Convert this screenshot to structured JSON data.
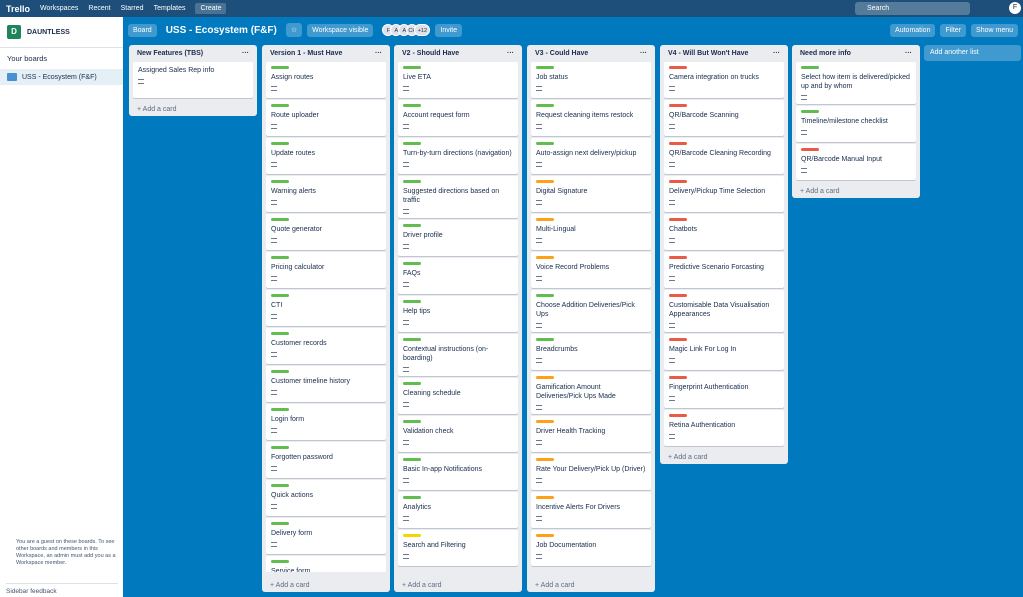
{
  "topbar": {
    "logo": "Trello",
    "nav": [
      "Workspaces",
      "Recent",
      "Starred",
      "Templates"
    ],
    "create": "Create",
    "search": "Search",
    "account": "F"
  },
  "board_header": {
    "view": "Board",
    "title": "USS - Ecosystem (F&F)",
    "visibility": "Workspace visible",
    "members": [
      "F",
      "A",
      "A",
      "CH"
    ],
    "more_members": "+12",
    "invite": "Invite",
    "automation": "Automation",
    "filter": "Filter",
    "menu": "Show menu"
  },
  "sidebar": {
    "workspace_initial": "D",
    "workspace": "DAUNTLESS",
    "section": "Your boards",
    "boards": [
      "USS - Ecosystem (F&F)"
    ],
    "notice": "You are a guest on these boards. To see other boards and members in this Workspace, an admin must add you as a Workspace member.",
    "feedback": "Sidebar feedback"
  },
  "lists": [
    {
      "title": "New Features (TBS)",
      "cards": [
        {
          "title": "Assigned Sales Rep info"
        }
      ],
      "add": "Add a card"
    },
    {
      "title": "Version 1 - Must Have",
      "cards": [
        {
          "title": "Assign routes",
          "label": "#61bd4f"
        },
        {
          "title": "Route uploader",
          "label": "#61bd4f"
        },
        {
          "title": "Update routes",
          "label": "#61bd4f"
        },
        {
          "title": "Warning alerts",
          "label": "#61bd4f"
        },
        {
          "title": "Quote generator",
          "label": "#61bd4f"
        },
        {
          "title": "Pricing calculator",
          "label": "#61bd4f"
        },
        {
          "title": "CTI",
          "label": "#61bd4f"
        },
        {
          "title": "Customer records",
          "label": "#61bd4f"
        },
        {
          "title": "Customer timeline history",
          "label": "#61bd4f"
        },
        {
          "title": "Login form",
          "label": "#61bd4f"
        },
        {
          "title": "Forgotten password",
          "label": "#61bd4f"
        },
        {
          "title": "Quick actions",
          "label": "#61bd4f"
        },
        {
          "title": "Delivery form",
          "label": "#61bd4f"
        },
        {
          "title": "Service form",
          "label": "#61bd4f"
        }
      ],
      "add": "Add a card"
    },
    {
      "title": "V2 - Should Have",
      "cards": [
        {
          "title": "Live ETA",
          "label": "#61bd4f"
        },
        {
          "title": "Account request form",
          "label": "#61bd4f"
        },
        {
          "title": "Turn-by-turn directions (navigation)",
          "label": "#61bd4f"
        },
        {
          "title": "Suggested directions based on traffic",
          "label": "#61bd4f"
        },
        {
          "title": "Driver profile",
          "label": "#61bd4f"
        },
        {
          "title": "FAQs",
          "label": "#61bd4f"
        },
        {
          "title": "Help tips",
          "label": "#61bd4f"
        },
        {
          "title": "Contextual instructions (on-boarding)",
          "label": "#61bd4f"
        },
        {
          "title": "Cleaning schedule",
          "label": "#61bd4f"
        },
        {
          "title": "Validation check",
          "label": "#61bd4f"
        },
        {
          "title": "Basic In-app Notifications",
          "label": "#61bd4f"
        },
        {
          "title": "Analytics",
          "label": "#61bd4f"
        },
        {
          "title": "Search and Filtering",
          "label": "#f2d600"
        }
      ],
      "add": "Add a card"
    },
    {
      "title": "V3 - Could Have",
      "cards": [
        {
          "title": "Job status",
          "label": "#61bd4f"
        },
        {
          "title": "Request cleaning items restock",
          "label": "#61bd4f"
        },
        {
          "title": "Auto-assign next delivery/pickup",
          "label": "#61bd4f"
        },
        {
          "title": "Digital Signature",
          "label": "#ff9f1a"
        },
        {
          "title": "Multi-Lingual",
          "label": "#ff9f1a"
        },
        {
          "title": "Voice Record Problems",
          "label": "#ff9f1a"
        },
        {
          "title": "Choose Addition Deliveries/Pick Ups",
          "label": "#61bd4f"
        },
        {
          "title": "Breadcrumbs",
          "label": "#61bd4f"
        },
        {
          "title": "Gamification Amount Deliveries/Pick Ups Made",
          "label": "#ff9f1a"
        },
        {
          "title": "Driver Health Tracking",
          "label": "#ff9f1a"
        },
        {
          "title": "Rate Your Delivery/Pick Up (Driver)",
          "label": "#ff9f1a"
        },
        {
          "title": "Incentive Alerts For Drivers",
          "label": "#ff9f1a"
        },
        {
          "title": "Job Documentation",
          "label": "#ff9f1a"
        }
      ],
      "add": "Add a card"
    },
    {
      "title": "V4 - Will But Won't Have",
      "cards": [
        {
          "title": "Camera integration on trucks",
          "label": "#eb5a46"
        },
        {
          "title": "QR/Barcode Scanning",
          "label": "#eb5a46"
        },
        {
          "title": "QR/Barcode Cleaning Recording",
          "label": "#eb5a46"
        },
        {
          "title": "Delivery/Pickup Time Selection",
          "label": "#eb5a46"
        },
        {
          "title": "Chatbots",
          "label": "#eb5a46"
        },
        {
          "title": "Predictive Scenario Forcasting",
          "label": "#eb5a46"
        },
        {
          "title": "Customisable Data Visualisation Appearances",
          "label": "#eb5a46"
        },
        {
          "title": "Magic Link For Log In",
          "label": "#eb5a46"
        },
        {
          "title": "Fingerprint Authentication",
          "label": "#eb5a46"
        },
        {
          "title": "Retina Authentication",
          "label": "#eb5a46"
        }
      ],
      "add": "Add a card"
    },
    {
      "title": "Need more info",
      "cards": [
        {
          "title": "Select how item is delivered/picked up and by whom",
          "label": "#61bd4f"
        },
        {
          "title": "Timeline/milestone checklist",
          "label": "#61bd4f"
        },
        {
          "title": "QR/Barcode Manual Input",
          "label": "#eb5a46"
        }
      ],
      "add": "Add a card"
    }
  ],
  "add_list": "Add another list"
}
